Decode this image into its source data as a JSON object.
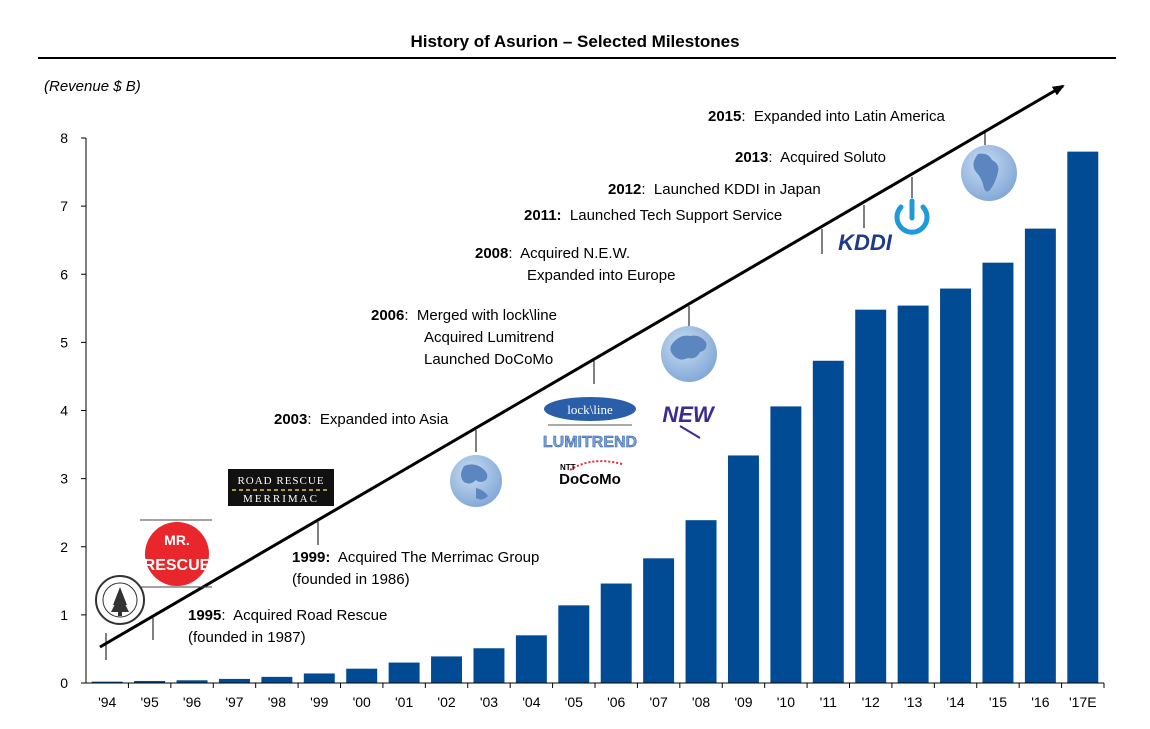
{
  "chart_data": {
    "type": "bar",
    "title": "History of Asurion – Selected Milestones",
    "ylabel": "(Revenue $ B)",
    "xlabel": "",
    "ylim": [
      0,
      8
    ],
    "yticks": [
      0,
      1,
      2,
      3,
      4,
      5,
      6,
      7,
      8
    ],
    "categories": [
      "'94",
      "'95",
      "'96",
      "'97",
      "'98",
      "'99",
      "'00",
      "'01",
      "'02",
      "'03",
      "'04",
      "'05",
      "'06",
      "'07",
      "'08",
      "'09",
      "'10",
      "'11",
      "'12",
      "'13",
      "'14",
      "'15",
      "'16",
      "'17E"
    ],
    "values": [
      0.02,
      0.03,
      0.04,
      0.06,
      0.09,
      0.14,
      0.21,
      0.3,
      0.39,
      0.51,
      0.7,
      1.14,
      1.46,
      1.83,
      2.39,
      3.34,
      4.06,
      4.73,
      5.48,
      5.54,
      5.79,
      6.17,
      6.67,
      7.8
    ],
    "bar_color": "#004B93",
    "grid": false,
    "legend": "none"
  },
  "milestones": [
    {
      "year": "1995",
      "lines": [
        "Acquired Road Rescue",
        "(founded in 1987)"
      ]
    },
    {
      "year": "1999:",
      "lines": [
        "Acquired The Merrimac Group",
        "(founded in 1986)"
      ]
    },
    {
      "year": "2003",
      "lines": [
        "Expanded into Asia"
      ]
    },
    {
      "year": "2006",
      "lines": [
        "Merged with lock\\line",
        "Acquired Lumitrend",
        "Launched DoCoMo"
      ]
    },
    {
      "year": "2008",
      "lines": [
        "Acquired N.E.W.",
        "Expanded into Europe"
      ]
    },
    {
      "year": "2011:",
      "lines": [
        "Launched Tech Support Service"
      ]
    },
    {
      "year": "2012",
      "lines": [
        "Launched KDDI in Japan"
      ]
    },
    {
      "year": "2013",
      "lines": [
        "Acquired Soluto"
      ]
    },
    {
      "year": "2015",
      "lines": [
        "Expanded into Latin America"
      ]
    }
  ],
  "logos": {
    "mr_rescue_line1": "MR.",
    "mr_rescue_line2": "RESCUE",
    "road_rescue_line1": "ROAD RESCUE",
    "road_rescue_line2": "MERRIMAC",
    "lockline": "lock\\line",
    "lumitrend": "LUMITREND",
    "docomo_small": "NTT",
    "docomo": "DoCoMo",
    "new": "NEW",
    "kddi": "KDDI"
  },
  "colors": {
    "bar": "#004B93",
    "globe": "#8FB4DE",
    "globe_land": "#5B86BF",
    "rescue_red": "#E8262B",
    "kddi_blue": "#1E3A8A",
    "soluto_blue": "#1C9BD8"
  }
}
